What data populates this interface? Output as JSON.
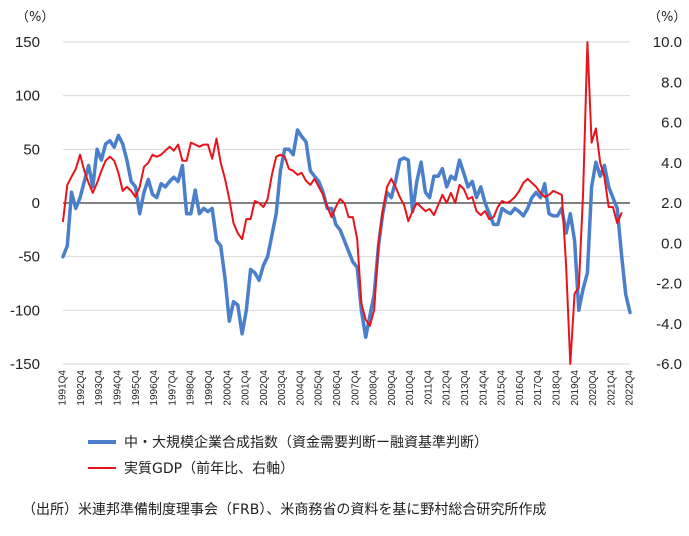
{
  "chart_data": {
    "type": "line",
    "y_left": {
      "unit_label": "（%）",
      "ylim": [
        -150,
        150
      ],
      "ticks": [
        150,
        100,
        50,
        0,
        -50,
        -100,
        -150
      ]
    },
    "y_right": {
      "unit_label": "（%）",
      "ylim": [
        -6.0,
        10.0
      ],
      "ticks": [
        "10.0",
        "8.0",
        "6.0",
        "4.0",
        "2.0",
        "0.0",
        "-2.0",
        "-4.0",
        "-6.0"
      ]
    },
    "x_tick_labels": [
      "1991Q4",
      "1992Q4",
      "1993Q4",
      "1994Q4",
      "1995Q4",
      "1996Q4",
      "1997Q4",
      "1998Q4",
      "1999Q4",
      "2000Q4",
      "2001Q4",
      "2002Q4",
      "2003Q4",
      "2004Q4",
      "2005Q4",
      "2006Q4",
      "2007Q4",
      "2008Q4",
      "2009Q4",
      "2010Q4",
      "2011Q4",
      "2012Q4",
      "2013Q4",
      "2014Q4",
      "2015Q4",
      "2016Q4",
      "2017Q4",
      "2018Q4",
      "2019Q4",
      "2020Q4",
      "2021Q4",
      "2022Q4"
    ],
    "grid": true,
    "legend_position": "bottom",
    "series": [
      {
        "name": "中・大規模企業合成指数（資金需要判断ー融資基準判断）",
        "axis": "left",
        "color": "#4a7fcb",
        "values": [
          -50,
          -40,
          10,
          -5,
          5,
          20,
          35,
          15,
          50,
          40,
          55,
          58,
          52,
          63,
          55,
          40,
          20,
          15,
          -10,
          10,
          22,
          8,
          5,
          18,
          15,
          20,
          24,
          20,
          35,
          -10,
          -10,
          12,
          -10,
          -5,
          -8,
          -5,
          -35,
          -40,
          -70,
          -110,
          -92,
          -95,
          -122,
          -100,
          -62,
          -65,
          -72,
          -58,
          -50,
          -30,
          -10,
          30,
          50,
          50,
          45,
          68,
          62,
          57,
          30,
          25,
          20,
          10,
          -5,
          -5,
          -20,
          -25,
          -35,
          -45,
          -55,
          -60,
          -100,
          -125,
          -105,
          -85,
          -40,
          -10,
          10,
          5,
          20,
          40,
          42,
          40,
          -8,
          20,
          38,
          10,
          5,
          25,
          25,
          32,
          15,
          25,
          22,
          40,
          28,
          15,
          20,
          5,
          15,
          0,
          -10,
          -20,
          -20,
          -5,
          -8,
          -10,
          -5,
          -8,
          -12,
          -5,
          5,
          10,
          5,
          18,
          -10,
          -12,
          -12,
          -5,
          -28,
          -10,
          -35,
          -100,
          -80,
          -65,
          15,
          38,
          25,
          35,
          15,
          5,
          -5,
          -48,
          -85,
          -102
        ]
      },
      {
        "name": "実質GDP（前年比、右軸）",
        "axis": "right",
        "color": "#e8141b",
        "values": [
          1.1,
          2.9,
          3.3,
          3.7,
          4.4,
          3.6,
          3.0,
          2.5,
          3.0,
          3.6,
          4.1,
          4.3,
          4.1,
          3.5,
          2.6,
          2.8,
          2.6,
          2.3,
          2.8,
          3.8,
          4.0,
          4.4,
          4.3,
          4.4,
          4.6,
          4.8,
          4.6,
          4.9,
          4.1,
          4.1,
          5.0,
          4.9,
          4.8,
          4.9,
          4.9,
          4.2,
          5.2,
          4.0,
          3.2,
          2.2,
          1.0,
          0.5,
          0.2,
          1.2,
          1.2,
          2.1,
          2.0,
          1.8,
          2.2,
          3.4,
          4.3,
          4.4,
          4.3,
          3.7,
          3.6,
          3.4,
          3.5,
          3.1,
          2.9,
          3.2,
          2.8,
          2.4,
          1.8,
          1.3,
          1.8,
          2.2,
          2.0,
          1.3,
          1.3,
          0.2,
          -3.0,
          -3.8,
          -4.1,
          -3.3,
          0.0,
          1.6,
          2.8,
          3.2,
          2.8,
          2.3,
          1.9,
          1.1,
          1.6,
          2.0,
          1.8,
          1.6,
          1.7,
          1.4,
          1.9,
          2.4,
          2.0,
          2.5,
          2.0,
          2.9,
          2.7,
          2.2,
          2.3,
          1.6,
          1.4,
          1.6,
          1.2,
          1.3,
          1.8,
          2.1,
          2.0,
          2.1,
          2.3,
          2.6,
          3.0,
          3.2,
          3.0,
          2.8,
          2.5,
          2.3,
          2.4,
          2.6,
          2.5,
          2.4,
          -1.1,
          -6.0,
          -2.5,
          -2.2,
          2.5,
          10.0,
          5.0,
          5.7,
          4.0,
          3.3,
          1.8,
          1.8,
          1.0,
          1.5
        ]
      }
    ]
  },
  "source_text": "（出所）米連邦準備制度理事会（FRB）、米商務省の資料を基に野村総合研究所作成"
}
